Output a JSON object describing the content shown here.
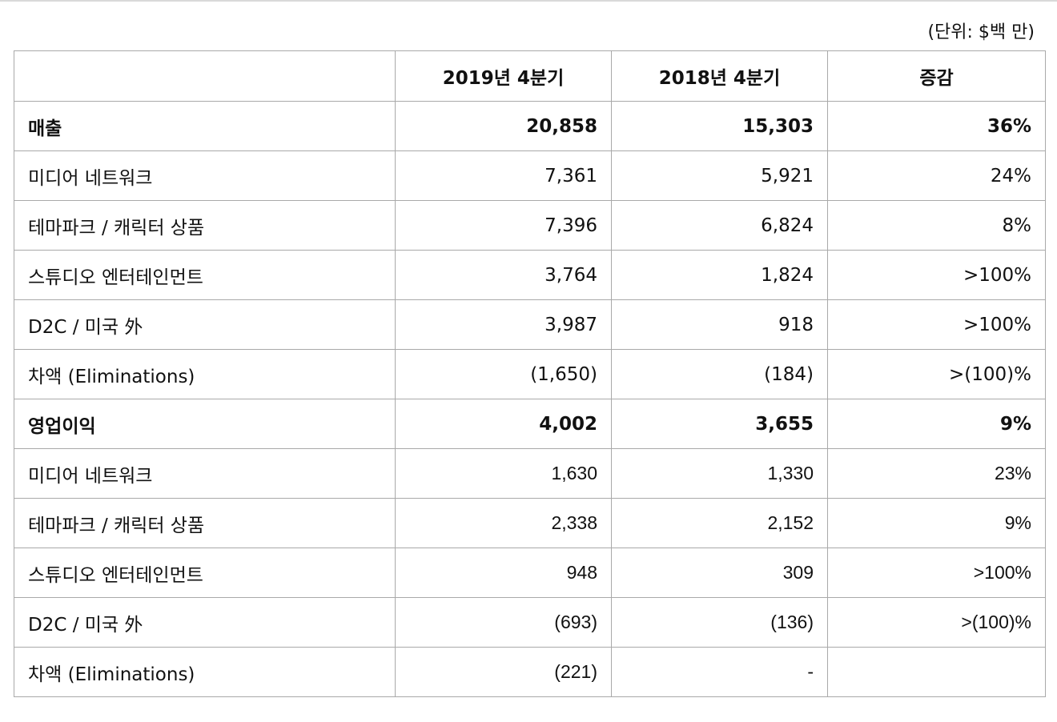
{
  "unit_note": "(단위: $백 만)",
  "table": {
    "headers": [
      "",
      "2019년 4분기",
      "2018년 4분기",
      "증감"
    ],
    "revenue": {
      "label": "매출",
      "values": [
        "20,858",
        "15,303",
        "36%"
      ],
      "rows": [
        {
          "label": "미디어 네트워크",
          "values": [
            "7,361",
            "5,921",
            "24%"
          ]
        },
        {
          "label": "테마파크 / 캐릭터 상품",
          "values": [
            "7,396",
            "6,824",
            "8%"
          ]
        },
        {
          "label": "스튜디오 엔터테인먼트",
          "values": [
            "3,764",
            "1,824",
            ">100%"
          ]
        },
        {
          "label": "D2C / 미국 外",
          "values": [
            "3,987",
            "918",
            ">100%"
          ]
        },
        {
          "label": "차액 (Eliminations)",
          "values": [
            "(1,650)",
            "(184)",
            ">(100)%"
          ]
        }
      ]
    },
    "operating_income": {
      "label": "영업이익",
      "values": [
        "4,002",
        "3,655",
        "9%"
      ],
      "rows": [
        {
          "label": "미디어 네트워크",
          "values": [
            "1,630",
            "1,330",
            "23%"
          ]
        },
        {
          "label": "테마파크 / 캐릭터 상품",
          "values": [
            "2,338",
            "2,152",
            "9%"
          ]
        },
        {
          "label": "스튜디오 엔터테인먼트",
          "values": [
            "948",
            "309",
            ">100%"
          ]
        },
        {
          "label": "D2C / 미국 外",
          "values": [
            "(693)",
            "(136)",
            ">(100)%"
          ]
        },
        {
          "label": "차액 (Eliminations)",
          "values": [
            "(221)",
            "-",
            ""
          ]
        }
      ]
    }
  }
}
